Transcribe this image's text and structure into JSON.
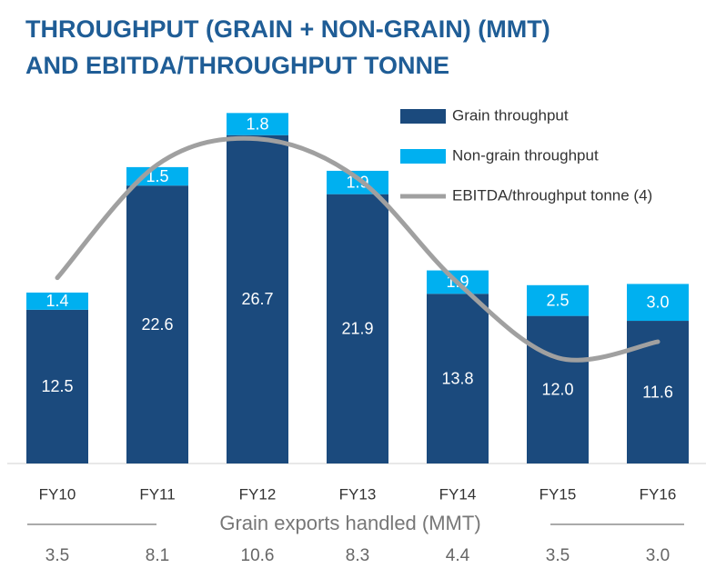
{
  "chart_data": {
    "type": "bar",
    "title": [
      "THROUGHPUT (GRAIN + NON-GRAIN) (MMT)",
      "AND EBITDA/THROUGHPUT TONNE"
    ],
    "stacked": true,
    "categories": [
      "FY10",
      "FY11",
      "FY12",
      "FY13",
      "FY14",
      "FY15",
      "FY16"
    ],
    "ylim": [
      0,
      28.6
    ],
    "series": [
      {
        "name": "Grain throughput",
        "color": "#1b4a7d",
        "values": [
          12.5,
          22.6,
          26.7,
          21.9,
          13.8,
          12.0,
          11.6
        ],
        "value_labels": [
          "12.5",
          "22.6",
          "26.7",
          "21.9",
          "13.8",
          "12.0",
          "11.6"
        ]
      },
      {
        "name": "Non-grain throughput",
        "color": "#00b0f0",
        "values": [
          1.4,
          1.5,
          1.8,
          1.9,
          1.9,
          2.5,
          3.0
        ],
        "value_labels": [
          "1.4",
          "1.5",
          "1.8",
          "1.9",
          "1.9",
          "2.5",
          "3.0"
        ]
      },
      {
        "name": "EBITDA/throughput tonne (4)",
        "type": "line",
        "color": "#a0a0a0",
        "values": [
          15.1,
          24.3,
          26.4,
          23.2,
          14.7,
          8.6,
          9.9
        ]
      }
    ],
    "exports": {
      "label": "Grain exports handled (MMT)",
      "values": [
        3.5,
        8.1,
        10.6,
        8.3,
        4.4,
        3.5,
        3.0
      ],
      "value_labels": [
        "3.5",
        "8.1",
        "10.6",
        "8.3",
        "4.4",
        "3.5",
        "3.0"
      ]
    }
  }
}
